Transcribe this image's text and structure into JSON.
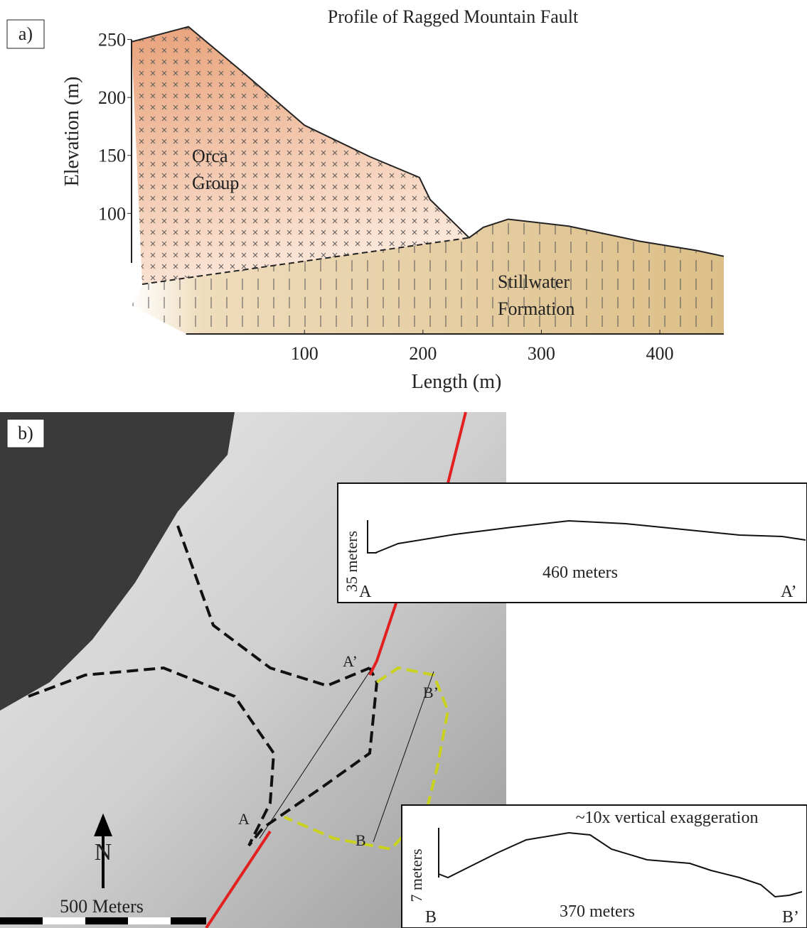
{
  "panel_label": "a)",
  "chart_data": {
    "type": "line",
    "title": "Profile of Ragged Mountain Fault",
    "x_label": "Length (m)",
    "y_label": "Elevation (m)",
    "x": [
      -46,
      2,
      50,
      100,
      155,
      197,
      206,
      239,
      251,
      272,
      323,
      383,
      431,
      454
    ],
    "series": [
      {
        "values": [
          248,
          261,
          220,
          176,
          149,
          131,
          112,
          79,
          88,
          95,
          89,
          76,
          68,
          63
        ],
        "color": "#222"
      }
    ],
    "xlim": [
      -46,
      454
    ],
    "ylim": [
      -4,
      262
    ],
    "xticks": [
      100,
      200,
      300,
      400
    ],
    "yticks": [
      100,
      150,
      200,
      250
    ],
    "unit_labels": [
      [
        "Orca",
        "Group"
      ],
      [
        "Stillwater",
        "Formation"
      ]
    ]
  },
  "map": {
    "label": "b)",
    "points": [
      "A",
      "A’",
      "B",
      "B’"
    ],
    "north": "N",
    "scale": "500 Meters",
    "profile_a": {
      "height": "35 meters",
      "length": "460 meters",
      "start": "A",
      "end": "A’"
    },
    "profile_b": {
      "note": "~10x vertical exaggeration",
      "height": "7 meters",
      "length": "370 meters",
      "start": "B",
      "end": "B’"
    }
  }
}
